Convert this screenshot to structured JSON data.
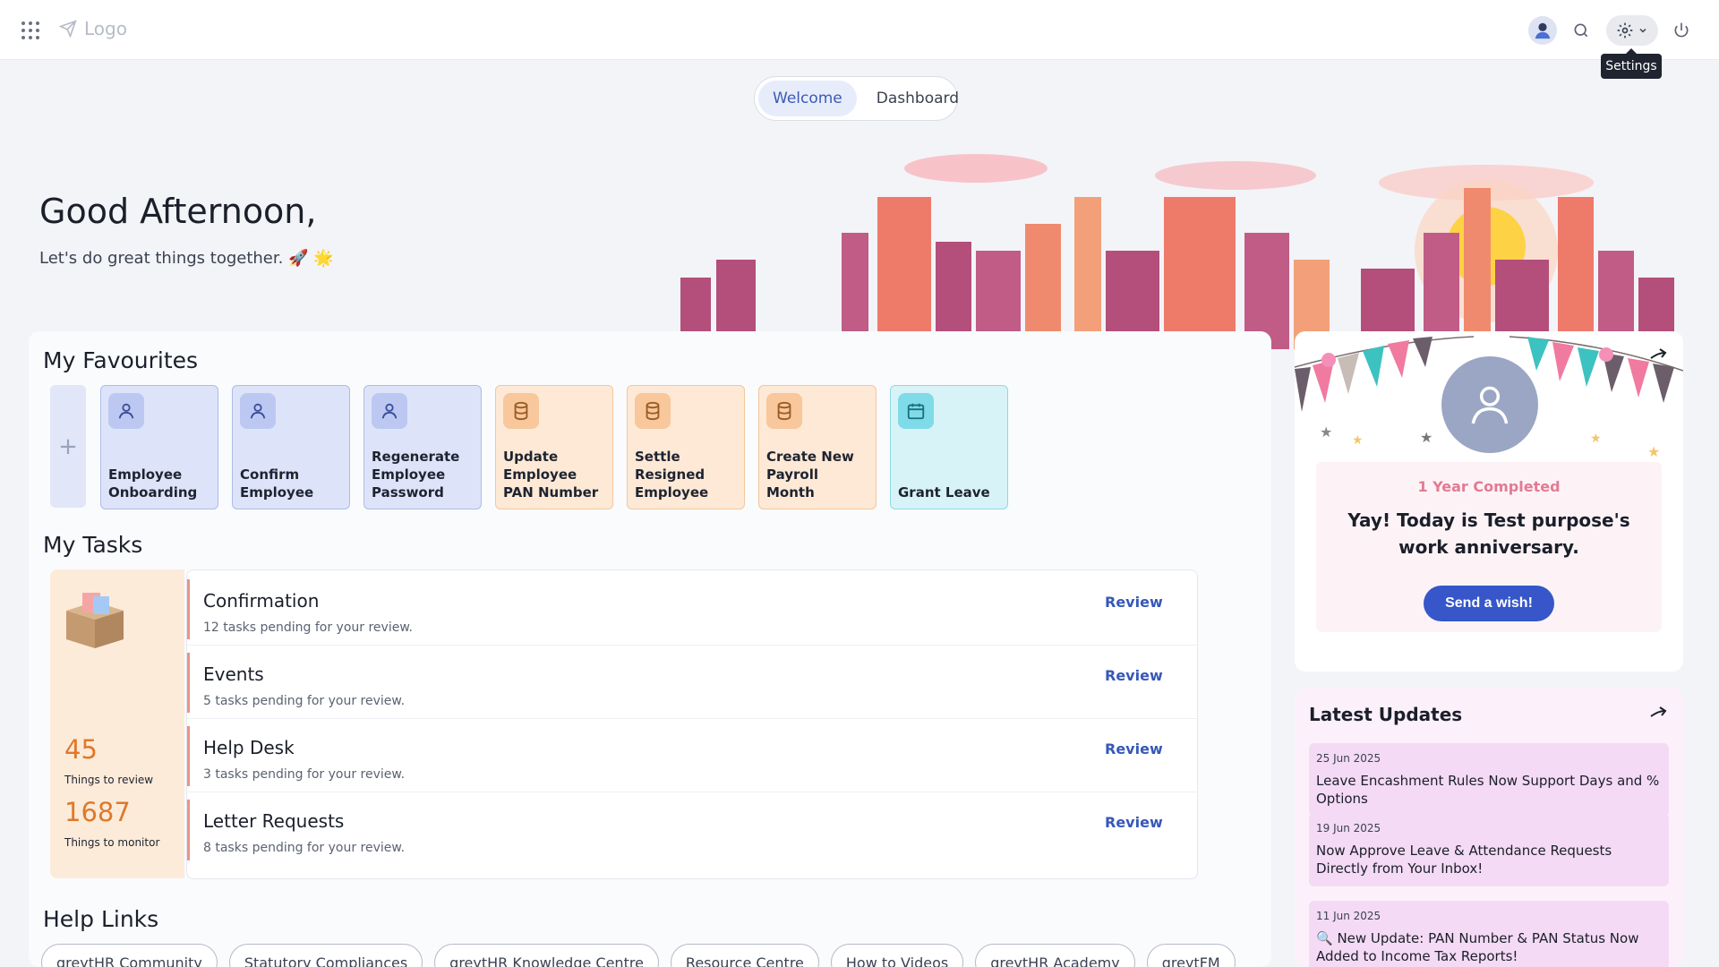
{
  "header": {
    "logo_text": "Logo",
    "settings_tooltip": "Settings"
  },
  "tabs": [
    {
      "label": "Welcome",
      "active": true
    },
    {
      "label": "Dashboard",
      "active": false
    }
  ],
  "greeting": {
    "title": "Good Afternoon,",
    "subtitle": "Let's do great things together. 🚀 🌟"
  },
  "favourites": {
    "title": "My Favourites",
    "items": [
      {
        "label": "Employee Onboarding",
        "icon": "user-icon",
        "color": "blue"
      },
      {
        "label": "Confirm Employee",
        "icon": "user-icon",
        "color": "blue"
      },
      {
        "label": "Regenerate Employee Password",
        "icon": "user-icon",
        "color": "blue"
      },
      {
        "label": "Update Employee PAN Number",
        "icon": "database-icon",
        "color": "orange"
      },
      {
        "label": "Settle Resigned Employee",
        "icon": "database-icon",
        "color": "orange"
      },
      {
        "label": "Create New Payroll Month",
        "icon": "database-icon",
        "color": "orange"
      },
      {
        "label": "Grant Leave",
        "icon": "calendar-icon",
        "color": "cyan"
      }
    ]
  },
  "tasks": {
    "title": "My Tasks",
    "review_count": "45",
    "review_label": "Things to review",
    "monitor_count": "1687",
    "monitor_label": "Things to monitor",
    "items": [
      {
        "title": "Confirmation",
        "subtitle": "12 tasks pending for your review.",
        "action": "Review"
      },
      {
        "title": "Events",
        "subtitle": "5 tasks pending for your review.",
        "action": "Review"
      },
      {
        "title": "Help Desk",
        "subtitle": "3 tasks pending for your review.",
        "action": "Review"
      },
      {
        "title": "Letter Requests",
        "subtitle": "8 tasks pending for your review.",
        "action": "Review"
      }
    ]
  },
  "help_links": {
    "title": "Help Links",
    "items": [
      "greytHR Community",
      "Statutory Compliances",
      "greytHR Knowledge Centre",
      "Resource Centre",
      "How to Videos",
      "greytHR Academy",
      "greytFM"
    ]
  },
  "anniversary": {
    "years": "1 Year Completed",
    "message": "Yay! Today is Test purpose's work anniversary.",
    "button": "Send a wish!"
  },
  "updates": {
    "title": "Latest Updates",
    "items": [
      {
        "date": "25 Jun 2025",
        "text": "Leave Encashment Rules Now Support Days and % Options"
      },
      {
        "date": "19 Jun 2025",
        "text": "Now Approve Leave & Attendance Requests Directly from Your Inbox!"
      },
      {
        "date": "11 Jun 2025",
        "text": "🔍 New Update: PAN Number & PAN Status Now Added to Income Tax Reports!"
      }
    ]
  }
}
